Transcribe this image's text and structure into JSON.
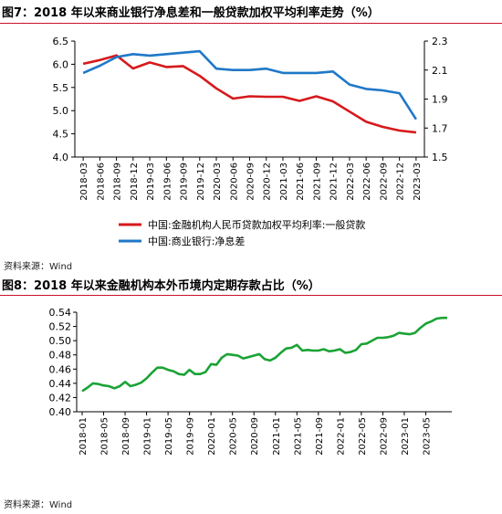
{
  "figure1": {
    "title": "图7：2018 年以来商业银行净息差和一般贷款加权平均利率走势（%）",
    "source": "资料来源：Wind"
  },
  "figure2": {
    "title": "图8：2018 年以来金融机构本外币境内定期存款占比（%）",
    "source": "资料来源：Wind"
  },
  "colors": {
    "red": "#d7191c",
    "blue": "#1f78c8",
    "green": "#1aa335",
    "rule": "#c8102e"
  },
  "chart_data": [
    {
      "type": "line",
      "title": "图7：2018 年以来商业银行净息差和一般贷款加权平均利率走势（%）",
      "x": [
        "2018-03",
        "2018-06",
        "2018-09",
        "2018-12",
        "2019-03",
        "2019-06",
        "2019-09",
        "2019-12",
        "2020-03",
        "2020-06",
        "2020-09",
        "2020-12",
        "2021-03",
        "2021-06",
        "2021-09",
        "2021-12",
        "2022-03",
        "2022-06",
        "2022-09",
        "2022-12",
        "2023-03"
      ],
      "y_left": {
        "min": 4.0,
        "max": 6.5,
        "ticks": [
          "4.0",
          "4.5",
          "5.0",
          "5.5",
          "6.0",
          "6.5"
        ]
      },
      "y_right": {
        "min": 1.5,
        "max": 2.3,
        "ticks": [
          "1.5",
          "1.7",
          "1.9",
          "2.1",
          "2.3"
        ]
      },
      "series": [
        {
          "name": "中国:金融机构人民币贷款加权平均利率:一般贷款",
          "axis": "left",
          "color": "#d7191c",
          "values": [
            6.01,
            6.09,
            6.19,
            5.91,
            6.04,
            5.94,
            5.96,
            5.75,
            5.48,
            5.26,
            5.31,
            5.3,
            5.3,
            5.21,
            5.31,
            5.2,
            4.98,
            4.76,
            4.65,
            4.57,
            4.53
          ]
        },
        {
          "name": "中国:商业银行:净息差",
          "axis": "right",
          "color": "#1f78c8",
          "values": [
            2.08,
            2.13,
            2.19,
            2.21,
            2.2,
            2.21,
            2.22,
            2.23,
            2.11,
            2.1,
            2.1,
            2.11,
            2.08,
            2.08,
            2.08,
            2.09,
            2.0,
            1.97,
            1.96,
            1.94,
            1.76
          ]
        }
      ],
      "legend": "bottom"
    },
    {
      "type": "line",
      "title": "图8：2018 年以来金融机构本外币境内定期存款占比（%）",
      "x_ticks": [
        "2018-01",
        "2018-05",
        "2018-09",
        "2019-01",
        "2019-05",
        "2019-09",
        "2020-01",
        "2020-05",
        "2020-09",
        "2021-01",
        "2021-05",
        "2021-09",
        "2022-01",
        "2022-05",
        "2022-09",
        "2023-01",
        "2023-05"
      ],
      "y": {
        "min": 0.4,
        "max": 0.54,
        "ticks": [
          "0.40",
          "0.42",
          "0.44",
          "0.46",
          "0.48",
          "0.50",
          "0.52",
          "0.54"
        ]
      },
      "series": [
        {
          "color": "#1aa335",
          "values": [
            0.429,
            0.434,
            0.44,
            0.439,
            0.437,
            0.436,
            0.433,
            0.436,
            0.442,
            0.436,
            0.438,
            0.441,
            0.447,
            0.455,
            0.462,
            0.462,
            0.459,
            0.457,
            0.453,
            0.452,
            0.459,
            0.453,
            0.453,
            0.456,
            0.467,
            0.466,
            0.476,
            0.481,
            0.48,
            0.479,
            0.475,
            0.477,
            0.479,
            0.481,
            0.474,
            0.472,
            0.476,
            0.483,
            0.489,
            0.49,
            0.494,
            0.486,
            0.487,
            0.486,
            0.486,
            0.488,
            0.485,
            0.486,
            0.488,
            0.483,
            0.484,
            0.487,
            0.495,
            0.496,
            0.5,
            0.504,
            0.504,
            0.505,
            0.507,
            0.511,
            0.51,
            0.509,
            0.511,
            0.518,
            0.524,
            0.527,
            0.531,
            0.532,
            0.532
          ]
        }
      ],
      "legend": "none"
    }
  ]
}
